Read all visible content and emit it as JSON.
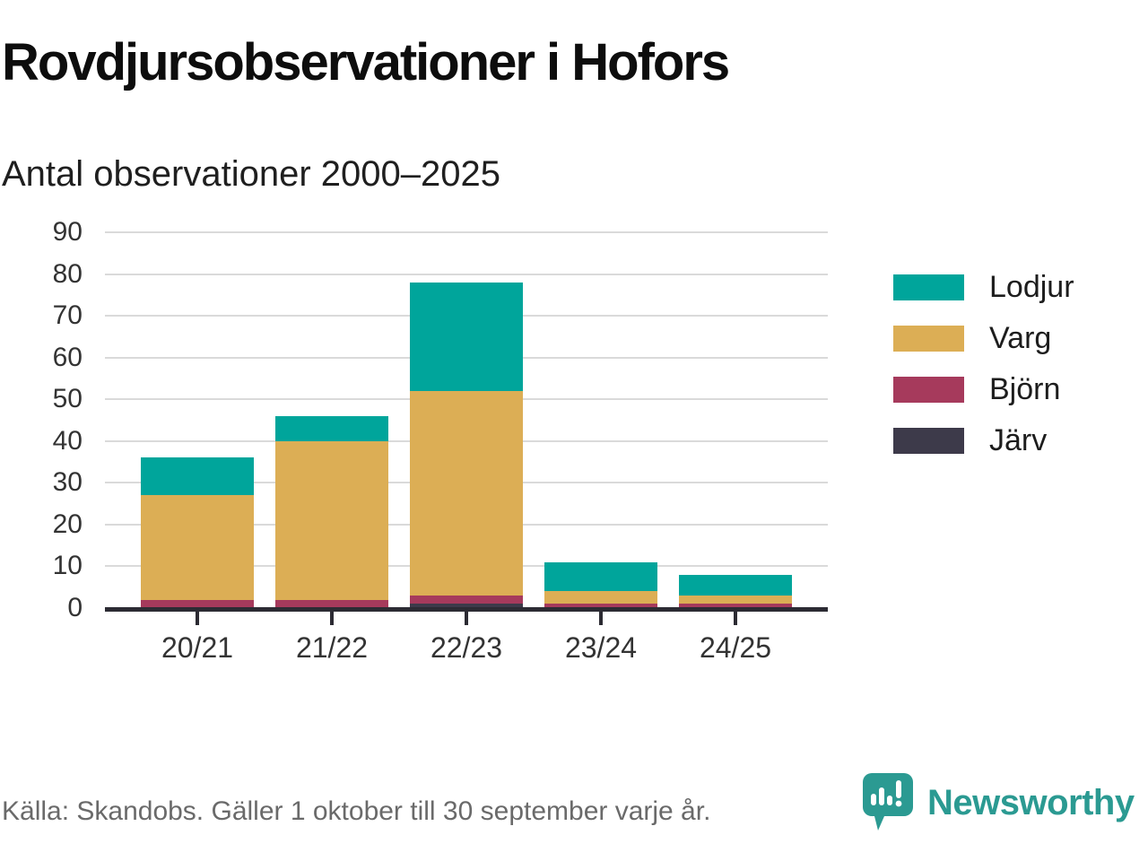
{
  "header": {
    "title": "Rovdjursobservationer i Hofors",
    "subtitle": "Antal observationer 2000–2025"
  },
  "footer": {
    "source": "Källa: Skandobs. Gäller 1 oktober till 30 september varje år.",
    "brand": "Newsworthy"
  },
  "colors": {
    "lodjur": "#00a59b",
    "varg": "#dcae55",
    "bjorn": "#a63a5c",
    "jarv": "#3d3a4a",
    "axis": "#2c2b33",
    "gridline": "#dadada",
    "tick_text": "#333333",
    "brand_teal": "#2b9a92"
  },
  "chart_data": {
    "type": "bar",
    "stacked": true,
    "title": "Rovdjursobservationer i Hofors",
    "subtitle": "Antal observationer 2000–2025",
    "categories": [
      "20/21",
      "21/22",
      "22/23",
      "23/24",
      "24/25"
    ],
    "series": [
      {
        "name": "Järv",
        "color": "#3d3a4a",
        "values": [
          0,
          0,
          1,
          0,
          0
        ]
      },
      {
        "name": "Björn",
        "color": "#a63a5c",
        "values": [
          2,
          2,
          2,
          1,
          1
        ]
      },
      {
        "name": "Varg",
        "color": "#dcae55",
        "values": [
          25,
          38,
          49,
          3,
          2
        ]
      },
      {
        "name": "Lodjur",
        "color": "#00a59b",
        "values": [
          9,
          6,
          26,
          7,
          5
        ]
      }
    ],
    "totals": [
      36,
      46,
      78,
      11,
      8
    ],
    "ylim": [
      0,
      90
    ],
    "yticks": [
      0,
      10,
      20,
      30,
      40,
      50,
      60,
      70,
      80,
      90
    ],
    "legend_order": [
      "Lodjur",
      "Varg",
      "Björn",
      "Järv"
    ],
    "legend_position": "right",
    "grid": "horizontal"
  }
}
